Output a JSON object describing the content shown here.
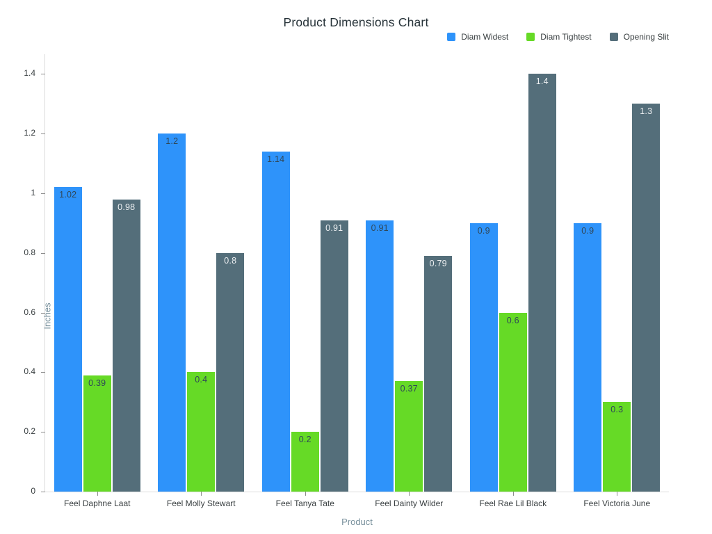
{
  "title": "Product Dimensions Chart",
  "axes": {
    "x_title": "Product",
    "y_title": "Inches"
  },
  "chart_data": {
    "type": "bar",
    "title": "Product Dimensions Chart",
    "xlabel": "Product",
    "ylabel": "Inches",
    "categories": [
      "Feel Daphne Laat",
      "Feel Molly Stewart",
      "Feel Tanya Tate",
      "Feel Dainty Wilder",
      "Feel Rae Lil Black",
      "Feel Victoria June"
    ],
    "series": [
      {
        "name": "Diam Widest",
        "color": "#2E93FA",
        "label_color": "#304758",
        "values": [
          1.02,
          1.2,
          1.14,
          0.91,
          0.9,
          0.9
        ]
      },
      {
        "name": "Diam Tightest",
        "color": "#66DA26",
        "label_color": "#304758",
        "values": [
          0.39,
          0.4,
          0.2,
          0.37,
          0.6,
          0.3
        ]
      },
      {
        "name": "Opening Slit",
        "color": "#546E7A",
        "label_color": "#ECEFF1",
        "values": [
          0.98,
          0.8,
          0.91,
          0.79,
          1.4,
          1.3
        ]
      }
    ],
    "yticks": [
      0,
      0.2,
      0.4,
      0.6,
      0.8,
      1,
      1.2,
      1.4
    ],
    "ylim": [
      0,
      1.45
    ],
    "grid": false,
    "legend_position": "top-right"
  }
}
